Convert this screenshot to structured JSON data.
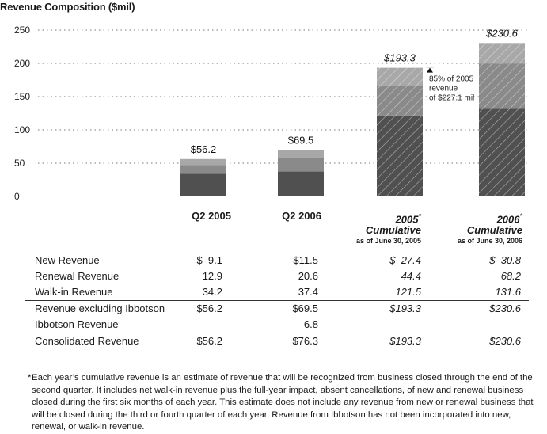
{
  "title": "Revenue Composition ($mil)",
  "colors": {
    "new": "#a8a8a8",
    "renewal": "#8a8a8a",
    "walkin": "#505050",
    "hatch": "#ffffff"
  },
  "chart_data": {
    "type": "bar",
    "stacked": true,
    "title": "Revenue Composition ($mil)",
    "categories": [
      "Q2 2005",
      "Q2 2006",
      "2005 Cumulative",
      "2006 Cumulative"
    ],
    "series": [
      {
        "name": "Walk-in Revenue",
        "values": [
          34.2,
          37.4,
          121.5,
          131.6
        ]
      },
      {
        "name": "Renewal Revenue",
        "values": [
          12.9,
          20.6,
          44.4,
          68.2
        ]
      },
      {
        "name": "New Revenue",
        "values": [
          9.1,
          11.5,
          27.4,
          30.8
        ]
      }
    ],
    "totals": [
      "$56.2",
      "$69.5",
      "$193.3",
      "$230.6"
    ],
    "hatched": [
      false,
      false,
      true,
      true
    ],
    "italic_totals": [
      false,
      false,
      true,
      true
    ],
    "yticks": [
      0,
      50,
      100,
      150,
      200,
      250
    ],
    "ylim": [
      0,
      250
    ],
    "grid": "dotted-horizontal",
    "annotation": {
      "bar": "2005 Cumulative",
      "value": 227.1,
      "lines": [
        "85% of 2005",
        "revenue",
        "of $227.1 mil"
      ]
    }
  },
  "columns": [
    {
      "head": "Q2 2005",
      "italic": false,
      "sup": "",
      "line2": "",
      "sub": ""
    },
    {
      "head": "Q2 2006",
      "italic": false,
      "sup": "",
      "line2": "",
      "sub": ""
    },
    {
      "head": "2005",
      "italic": true,
      "sup": "*",
      "line2": "Cumulative",
      "sub": "as of June 30, 2005"
    },
    {
      "head": "2006",
      "italic": true,
      "sup": "*",
      "line2": "Cumulative",
      "sub": "as of June 30, 2006"
    }
  ],
  "table": [
    {
      "label": "New Revenue",
      "values": [
        "$  9.1",
        "$11.5",
        "$  27.4",
        "$  30.8"
      ]
    },
    {
      "label": "Renewal Revenue",
      "values": [
        "12.9",
        "20.6",
        "44.4",
        "68.2"
      ]
    },
    {
      "label": "Walk-in Revenue",
      "values": [
        "34.2",
        "37.4",
        "121.5",
        "131.6"
      ]
    },
    {
      "label": "Revenue excluding Ibbotson",
      "values": [
        "$56.2",
        "$69.5",
        "$193.3",
        "$230.6"
      ]
    },
    {
      "label": "Ibbotson Revenue",
      "values": [
        "—",
        "6.8",
        "—",
        "—"
      ]
    },
    {
      "label": "Consolidated Revenue",
      "values": [
        "$56.2",
        "$76.3",
        "$193.3",
        "$230.6"
      ]
    }
  ],
  "footnote": {
    "mark": "*",
    "text": "Each year’s cumulative revenue is an estimate of revenue that will be recognized from business closed through the end of the second quarter. It includes net walk-in revenue plus the full-year impact, absent cancellations, of new and renewal business closed during the first six months of each year. This estimate does not include any revenue from new or renewal business that will be closed during the third or fourth quarter of each year. Revenue from Ibbotson has not been incorporated into new, renewal, or walk-in revenue."
  }
}
